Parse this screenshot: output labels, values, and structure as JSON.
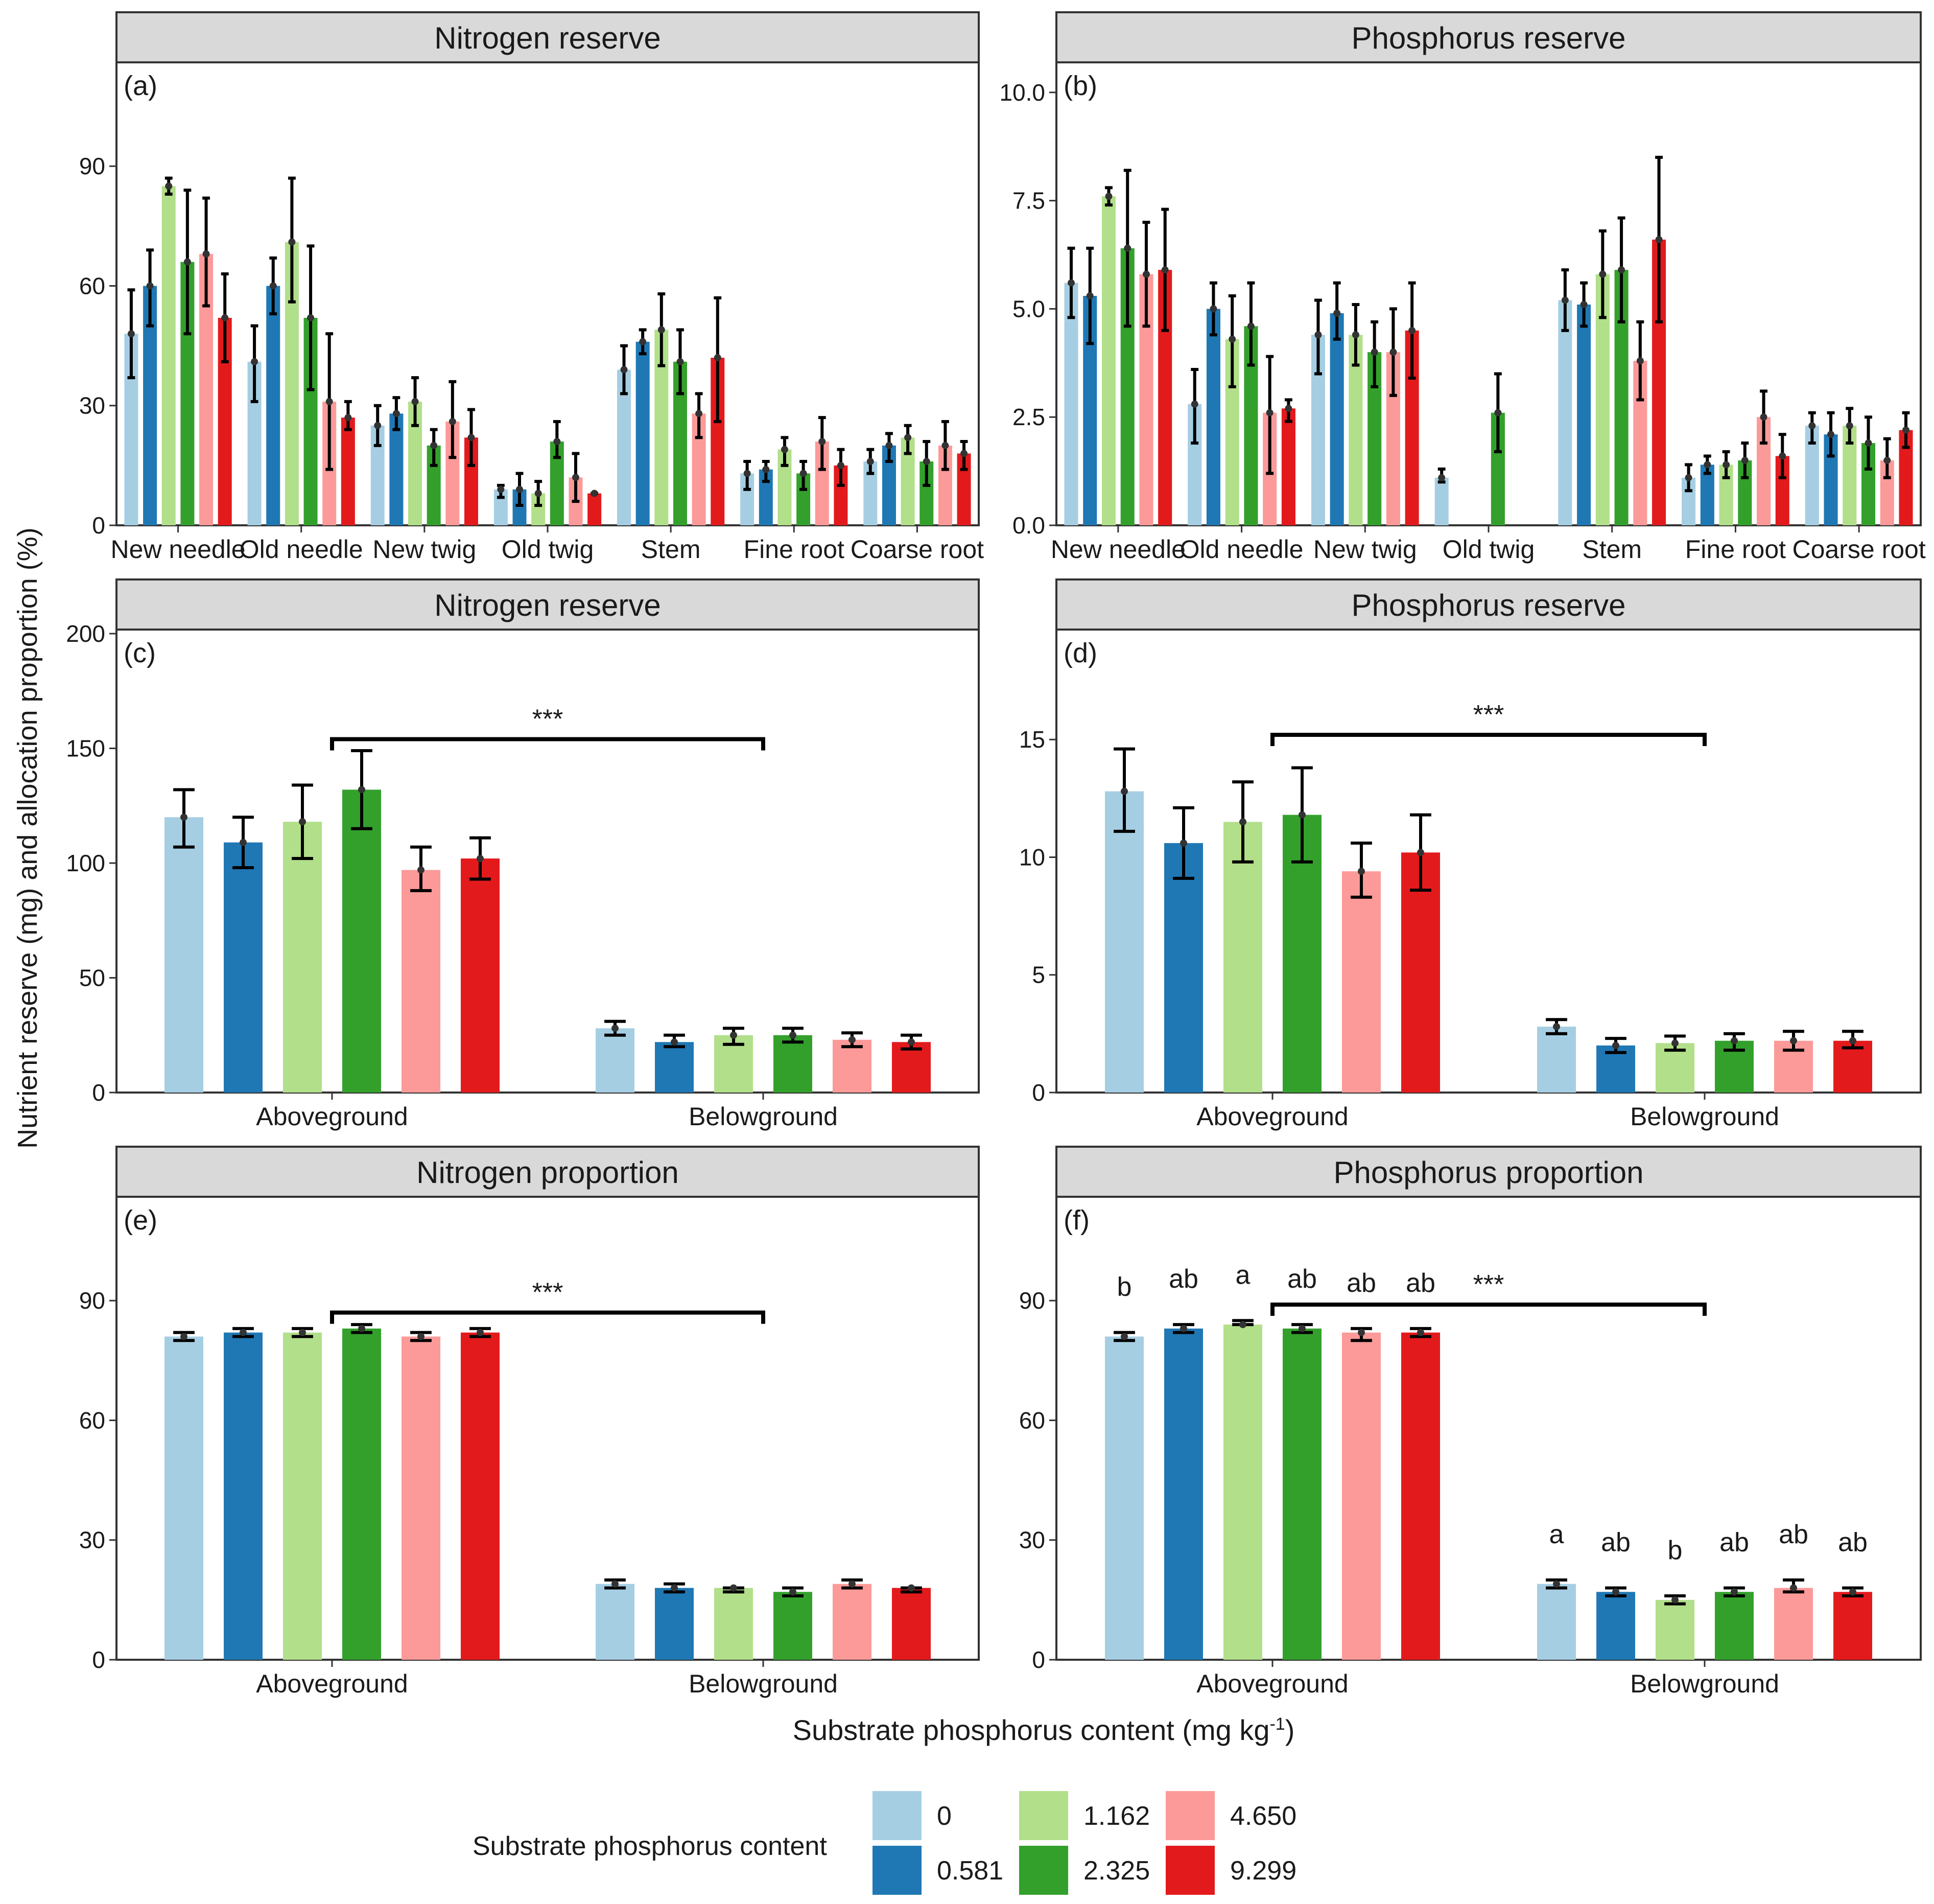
{
  "y_axis_title": "Nutrient reserve (mg) and allocation proportion (%)",
  "x_axis_title": {
    "main": "Substrate phosphorus content (mg kg",
    "superscript": "-1",
    "close": ")"
  },
  "legend": {
    "title": "Substrate phosphorus content",
    "levels": [
      "0",
      "0.581",
      "1.162",
      "2.325",
      "4.650",
      "9.299"
    ],
    "colors": [
      "#a6cee3",
      "#1f78b4",
      "#b2df8a",
      "#33a02c",
      "#fb9a99",
      "#e31a1c"
    ]
  },
  "colors": {
    "strip": "#d9d9d9",
    "frame": "#333333",
    "errorbar": "#000000"
  },
  "chart_data": [
    {
      "id": "a",
      "type": "bar",
      "strip": "Nitrogen reserve",
      "tag": "(a)",
      "categories": [
        "New needle",
        "Old needle",
        "New twig",
        "Old twig",
        "Stem",
        "Fine root",
        "Coarse root"
      ],
      "ylim": [
        0,
        115
      ],
      "yticks": [
        0,
        30,
        60,
        90
      ],
      "ytick_labels": [
        "0",
        "30",
        "60",
        "90"
      ],
      "series": [
        {
          "name": "0",
          "values": [
            48,
            41,
            25,
            9,
            39,
            13,
            16
          ],
          "lower": [
            37,
            31,
            20,
            7,
            33,
            9,
            13
          ],
          "upper": [
            59,
            50,
            30,
            10,
            45,
            16,
            19
          ]
        },
        {
          "name": "0.581",
          "values": [
            60,
            60,
            28,
            9,
            46,
            14,
            20
          ],
          "lower": [
            50,
            53,
            24,
            5,
            43,
            11,
            16
          ],
          "upper": [
            69,
            67,
            32,
            13,
            49,
            16,
            23
          ]
        },
        {
          "name": "1.162",
          "values": [
            85,
            71,
            31,
            8,
            49,
            19,
            22
          ],
          "lower": [
            83,
            56,
            25,
            5,
            40,
            15,
            18
          ],
          "upper": [
            87,
            87,
            37,
            11,
            58,
            22,
            25
          ]
        },
        {
          "name": "2.325",
          "values": [
            66,
            52,
            20,
            21,
            41,
            13,
            16
          ],
          "lower": [
            48,
            34,
            15,
            17,
            33,
            9,
            10
          ],
          "upper": [
            84,
            70,
            24,
            26,
            49,
            16,
            21
          ]
        },
        {
          "name": "4.650",
          "values": [
            68,
            31,
            26,
            12,
            28,
            21,
            20
          ],
          "lower": [
            55,
            14,
            17,
            6,
            22,
            14,
            14
          ],
          "upper": [
            82,
            48,
            36,
            18,
            33,
            27,
            26
          ]
        },
        {
          "name": "9.299",
          "values": [
            52,
            27,
            22,
            8,
            42,
            15,
            18
          ],
          "lower": [
            41,
            24,
            15,
            8,
            26,
            10,
            14
          ],
          "upper": [
            63,
            31,
            29,
            8,
            57,
            19,
            21
          ]
        }
      ],
      "significance": [],
      "letters": []
    },
    {
      "id": "b",
      "type": "bar",
      "strip": "Phosphorus reserve",
      "tag": "(b)",
      "categories": [
        "New needle",
        "Old needle",
        "New twig",
        "Old twig",
        "Stem",
        "Fine root",
        "Coarse root"
      ],
      "ylim": [
        0,
        10.6
      ],
      "yticks": [
        0,
        2.5,
        5,
        7.5,
        10
      ],
      "ytick_labels": [
        "0.0",
        "2.5",
        "5.0",
        "7.5",
        "10.0"
      ],
      "series": [
        {
          "name": "0",
          "values": [
            5.6,
            2.8,
            4.4,
            1.1,
            5.2,
            1.1,
            2.3
          ],
          "lower": [
            4.8,
            1.9,
            3.5,
            1.0,
            4.5,
            0.8,
            1.9
          ],
          "upper": [
            6.4,
            3.6,
            5.2,
            1.3,
            5.9,
            1.4,
            2.6
          ]
        },
        {
          "name": "0.581",
          "values": [
            5.3,
            5.0,
            4.9,
            null,
            5.1,
            1.4,
            2.1
          ],
          "lower": [
            4.2,
            4.4,
            4.3,
            null,
            4.6,
            1.2,
            1.6
          ],
          "upper": [
            6.4,
            5.6,
            5.6,
            null,
            5.6,
            1.6,
            2.6
          ]
        },
        {
          "name": "1.162",
          "values": [
            7.6,
            4.3,
            4.4,
            null,
            5.8,
            1.4,
            2.3
          ],
          "lower": [
            7.4,
            3.2,
            3.7,
            null,
            4.8,
            1.1,
            1.9
          ],
          "upper": [
            7.8,
            5.3,
            5.1,
            null,
            6.8,
            1.7,
            2.7
          ]
        },
        {
          "name": "2.325",
          "values": [
            6.4,
            4.6,
            4.0,
            2.6,
            5.9,
            1.5,
            1.9
          ],
          "lower": [
            4.6,
            3.7,
            3.2,
            1.7,
            4.7,
            1.1,
            1.3
          ],
          "upper": [
            8.2,
            5.6,
            4.7,
            3.5,
            7.1,
            1.9,
            2.5
          ]
        },
        {
          "name": "4.650",
          "values": [
            5.8,
            2.6,
            4.0,
            null,
            3.8,
            2.5,
            1.5
          ],
          "lower": [
            4.6,
            1.2,
            3.0,
            null,
            2.9,
            1.9,
            1.1
          ],
          "upper": [
            7.0,
            3.9,
            5.0,
            null,
            4.7,
            3.1,
            2.0
          ]
        },
        {
          "name": "9.299",
          "values": [
            5.9,
            2.7,
            4.5,
            null,
            6.6,
            1.6,
            2.2
          ],
          "lower": [
            4.5,
            2.4,
            3.4,
            null,
            4.7,
            1.1,
            1.8
          ],
          "upper": [
            7.3,
            2.9,
            5.6,
            null,
            8.5,
            2.1,
            2.6
          ]
        }
      ],
      "significance": [],
      "letters": []
    },
    {
      "id": "c",
      "type": "bar",
      "strip": "Nitrogen reserve",
      "tag": "(c)",
      "categories": [
        "Aboveground",
        "Belowground"
      ],
      "ylim": [
        0,
        200
      ],
      "yticks": [
        0,
        50,
        100,
        150,
        200
      ],
      "ytick_labels": [
        "0",
        "50",
        "100",
        "150",
        "200"
      ],
      "series": [
        {
          "name": "0",
          "values": [
            120,
            28
          ],
          "lower": [
            107,
            25
          ],
          "upper": [
            132,
            31
          ]
        },
        {
          "name": "0.581",
          "values": [
            109,
            22
          ],
          "lower": [
            98,
            20
          ],
          "upper": [
            120,
            25
          ]
        },
        {
          "name": "1.162",
          "values": [
            118,
            25
          ],
          "lower": [
            102,
            21
          ],
          "upper": [
            134,
            28
          ]
        },
        {
          "name": "2.325",
          "values": [
            132,
            25
          ],
          "lower": [
            115,
            22
          ],
          "upper": [
            149,
            28
          ]
        },
        {
          "name": "4.650",
          "values": [
            97,
            23
          ],
          "lower": [
            88,
            20
          ],
          "upper": [
            107,
            26
          ]
        },
        {
          "name": "9.299",
          "values": [
            102,
            22
          ],
          "lower": [
            93,
            19
          ],
          "upper": [
            111,
            25
          ]
        }
      ],
      "significance": [
        {
          "label": "***",
          "y": 154
        }
      ],
      "letters": []
    },
    {
      "id": "d",
      "type": "bar",
      "strip": "Phosphorus reserve",
      "tag": "(d)",
      "categories": [
        "Aboveground",
        "Belowground"
      ],
      "ylim": [
        0,
        19.5
      ],
      "yticks": [
        0,
        5,
        10,
        15
      ],
      "ytick_labels": [
        "0",
        "5",
        "10",
        "15"
      ],
      "series": [
        {
          "name": "0",
          "values": [
            12.8,
            2.8
          ],
          "lower": [
            11.1,
            2.5
          ],
          "upper": [
            14.6,
            3.1
          ]
        },
        {
          "name": "0.581",
          "values": [
            10.6,
            2.0
          ],
          "lower": [
            9.1,
            1.7
          ],
          "upper": [
            12.1,
            2.3
          ]
        },
        {
          "name": "1.162",
          "values": [
            11.5,
            2.1
          ],
          "lower": [
            9.8,
            1.8
          ],
          "upper": [
            13.2,
            2.4
          ]
        },
        {
          "name": "2.325",
          "values": [
            11.8,
            2.2
          ],
          "lower": [
            9.8,
            1.8
          ],
          "upper": [
            13.8,
            2.5
          ]
        },
        {
          "name": "4.650",
          "values": [
            9.4,
            2.2
          ],
          "lower": [
            8.3,
            1.8
          ],
          "upper": [
            10.6,
            2.6
          ]
        },
        {
          "name": "9.299",
          "values": [
            10.2,
            2.2
          ],
          "lower": [
            8.6,
            1.9
          ],
          "upper": [
            11.8,
            2.6
          ]
        }
      ],
      "significance": [
        {
          "label": "***",
          "y": 15.2
        }
      ],
      "letters": []
    },
    {
      "id": "e",
      "type": "bar",
      "strip": "Nitrogen proportion",
      "tag": "(e)",
      "categories": [
        "Aboveground",
        "Belowground"
      ],
      "ylim": [
        0,
        115
      ],
      "yticks": [
        0,
        30,
        60,
        90
      ],
      "ytick_labels": [
        "0",
        "30",
        "60",
        "90"
      ],
      "series": [
        {
          "name": "0",
          "values": [
            81,
            19
          ],
          "lower": [
            80,
            18
          ],
          "upper": [
            82,
            20
          ]
        },
        {
          "name": "0.581",
          "values": [
            82,
            18
          ],
          "lower": [
            81,
            17
          ],
          "upper": [
            83,
            19
          ]
        },
        {
          "name": "1.162",
          "values": [
            82,
            18
          ],
          "lower": [
            81,
            17
          ],
          "upper": [
            83,
            18
          ]
        },
        {
          "name": "2.325",
          "values": [
            83,
            17
          ],
          "lower": [
            82,
            16
          ],
          "upper": [
            84,
            18
          ]
        },
        {
          "name": "4.650",
          "values": [
            81,
            19
          ],
          "lower": [
            80,
            18
          ],
          "upper": [
            82,
            20
          ]
        },
        {
          "name": "9.299",
          "values": [
            82,
            18
          ],
          "lower": [
            81,
            17
          ],
          "upper": [
            83,
            18
          ]
        }
      ],
      "significance": [
        {
          "label": "***",
          "y": 87
        }
      ],
      "letters": []
    },
    {
      "id": "f",
      "type": "bar",
      "strip": "Phosphorus proportion",
      "tag": "(f)",
      "categories": [
        "Aboveground",
        "Belowground"
      ],
      "ylim": [
        0,
        115
      ],
      "yticks": [
        0,
        30,
        60,
        90
      ],
      "ytick_labels": [
        "0",
        "30",
        "60",
        "90"
      ],
      "series": [
        {
          "name": "0",
          "values": [
            81,
            19
          ],
          "lower": [
            80,
            18
          ],
          "upper": [
            82,
            20
          ]
        },
        {
          "name": "0.581",
          "values": [
            83,
            17
          ],
          "lower": [
            82,
            16
          ],
          "upper": [
            84,
            18
          ]
        },
        {
          "name": "1.162",
          "values": [
            84,
            15
          ],
          "lower": [
            84,
            14
          ],
          "upper": [
            85,
            16
          ]
        },
        {
          "name": "2.325",
          "values": [
            83,
            17
          ],
          "lower": [
            82,
            16
          ],
          "upper": [
            84,
            18
          ]
        },
        {
          "name": "4.650",
          "values": [
            82,
            18
          ],
          "lower": [
            80,
            17
          ],
          "upper": [
            83,
            20
          ]
        },
        {
          "name": "9.299",
          "values": [
            82,
            17
          ],
          "lower": [
            81,
            16
          ],
          "upper": [
            83,
            18
          ]
        }
      ],
      "significance": [
        {
          "label": "***",
          "y": 89
        }
      ],
      "letters": [
        {
          "group": 0,
          "values": [
            "b",
            "ab",
            "a",
            "ab",
            "ab",
            "ab"
          ]
        },
        {
          "group": 1,
          "values": [
            "a",
            "ab",
            "b",
            "ab",
            "ab",
            "ab"
          ]
        }
      ]
    }
  ]
}
